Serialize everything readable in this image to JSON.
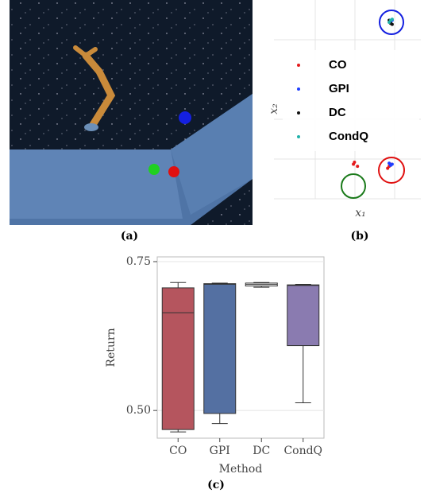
{
  "captions": {
    "a": "(a)",
    "b": "(b)",
    "c": "(c)"
  },
  "chart_data": [
    {
      "type": "scatter",
      "xlabel": "x₁",
      "ylabel": "x₂",
      "xlim": [
        0,
        1
      ],
      "ylim": [
        0,
        1
      ],
      "series": [
        {
          "name": "CO",
          "color": "#e41a1c",
          "x": [
            0.553,
            0.56,
            0.58,
            0.79,
            0.8,
            0.78
          ],
          "y": [
            0.19,
            0.2,
            0.18,
            0.18,
            0.19,
            0.17
          ]
        },
        {
          "name": "GPI",
          "color": "#1f3fff",
          "x": [
            0.8,
            0.81,
            0.79,
            0.8,
            0.81
          ],
          "y": [
            0.185,
            0.19,
            0.195,
            0.89,
            0.9
          ]
        },
        {
          "name": "DC",
          "color": "#111111",
          "x": [
            0.8,
            0.79,
            0.81
          ],
          "y": [
            0.885,
            0.9,
            0.88
          ]
        },
        {
          "name": "CondQ",
          "color": "#20b2aa",
          "x": [
            0.8,
            0.79,
            0.81
          ],
          "y": [
            0.9,
            0.89,
            0.905
          ]
        }
      ]
    },
    {
      "type": "box",
      "xlabel": "Method",
      "ylabel": "Return",
      "categories": [
        "CO",
        "GPI",
        "DC",
        "CondQ"
      ],
      "colors": [
        "#b5555e",
        "#5470a2",
        "#ffffff",
        "#8a7bb0"
      ],
      "ylim": [
        0.4535,
        0.758
      ],
      "yticks": [
        {
          "value": 0.5,
          "label": "0.50"
        },
        0.75
      ],
      "boxes": [
        {
          "whislo": 0.464,
          "q1": 0.468,
          "med": 0.664,
          "q3": 0.706,
          "whishi": 0.715
        },
        {
          "whislo": 0.478,
          "q1": 0.495,
          "med": 0.712,
          "q3": 0.713,
          "whishi": 0.714
        },
        {
          "whislo": 0.707,
          "q1": 0.709,
          "med": 0.712,
          "q3": 0.714,
          "whishi": 0.715
        },
        {
          "whislo": 0.513,
          "q1": 0.609,
          "med": 0.71,
          "q3": 0.711,
          "whishi": 0.712
        }
      ]
    }
  ]
}
